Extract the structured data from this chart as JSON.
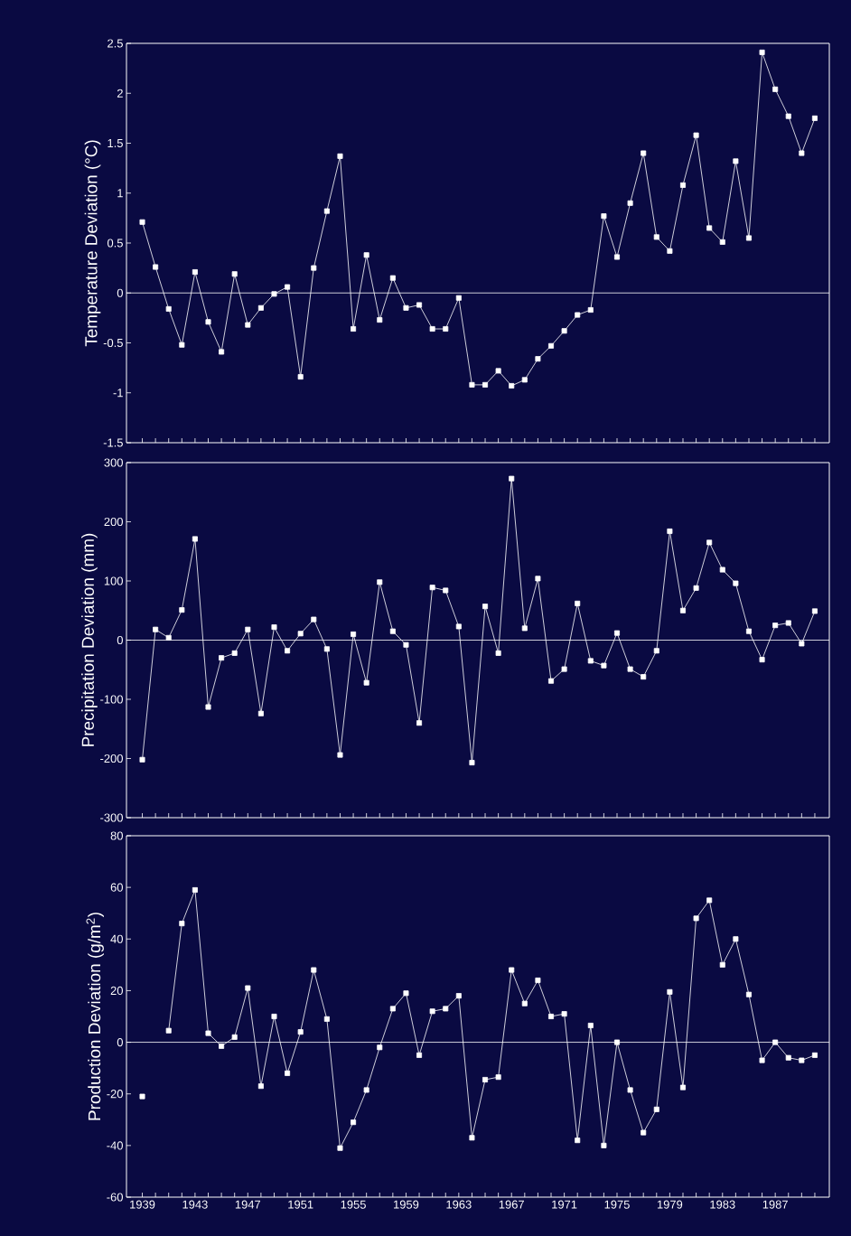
{
  "chart_data": [
    {
      "type": "line",
      "ylabel": "Temperature Deviation (°C)",
      "marker": "square",
      "line_style": "solid",
      "grid": false,
      "tick_labels": "y",
      "x": [
        1939,
        1940,
        1941,
        1942,
        1943,
        1944,
        1945,
        1946,
        1947,
        1948,
        1949,
        1950,
        1951,
        1952,
        1953,
        1954,
        1955,
        1956,
        1957,
        1958,
        1959,
        1960,
        1961,
        1962,
        1963,
        1964,
        1965,
        1966,
        1967,
        1968,
        1969,
        1970,
        1971,
        1972,
        1973,
        1974,
        1975,
        1976,
        1977,
        1978,
        1979,
        1980,
        1981,
        1982,
        1983,
        1984,
        1985,
        1986,
        1987,
        1988,
        1989,
        1990
      ],
      "xlim": [
        1937.8,
        1991.1
      ],
      "xticks": [
        1939,
        {
          "value": 1940,
          "label": null
        },
        {
          "value": 1941,
          "label": null
        },
        {
          "value": 1942,
          "label": null
        },
        1943,
        {
          "value": 1944,
          "label": null
        },
        {
          "value": 1945,
          "label": null
        },
        {
          "value": 1946,
          "label": null
        },
        1947,
        {
          "value": 1948,
          "label": null
        },
        {
          "value": 1949,
          "label": null
        },
        {
          "value": 1950,
          "label": null
        },
        1951,
        {
          "value": 1952,
          "label": null
        },
        {
          "value": 1953,
          "label": null
        },
        {
          "value": 1954,
          "label": null
        },
        1955,
        {
          "value": 1956,
          "label": null
        },
        {
          "value": 1957,
          "label": null
        },
        {
          "value": 1958,
          "label": null
        },
        1959,
        {
          "value": 1960,
          "label": null
        },
        {
          "value": 1961,
          "label": null
        },
        {
          "value": 1962,
          "label": null
        },
        1963,
        {
          "value": 1964,
          "label": null
        },
        {
          "value": 1965,
          "label": null
        },
        {
          "value": 1966,
          "label": null
        },
        1967,
        {
          "value": 1968,
          "label": null
        },
        {
          "value": 1969,
          "label": null
        },
        {
          "value": 1970,
          "label": null
        },
        1971,
        {
          "value": 1972,
          "label": null
        },
        {
          "value": 1973,
          "label": null
        },
        {
          "value": 1974,
          "label": null
        },
        1975,
        {
          "value": 1976,
          "label": null
        },
        {
          "value": 1977,
          "label": null
        },
        {
          "value": 1978,
          "label": null
        },
        1979,
        {
          "value": 1980,
          "label": null
        },
        {
          "value": 1981,
          "label": null
        },
        {
          "value": 1982,
          "label": null
        },
        1983,
        {
          "value": 1984,
          "label": null
        },
        {
          "value": 1985,
          "label": null
        },
        {
          "value": 1986,
          "label": null
        },
        1987,
        {
          "value": 1988,
          "label": null
        },
        {
          "value": 1989,
          "label": null
        },
        {
          "value": 1990,
          "label": null
        }
      ],
      "ylim": [
        -1.5,
        2.5
      ],
      "yticks": [
        -1.5,
        -1,
        -0.5,
        0,
        0.5,
        1,
        1.5,
        2,
        2.5
      ],
      "ref_lines": [
        {
          "axis": "y",
          "value": 0,
          "color": "#ffffff"
        }
      ],
      "series": [
        {
          "color": "#ffffff",
          "values": [
            0.71,
            0.26,
            -0.16,
            -0.52,
            0.21,
            -0.29,
            -0.59,
            0.19,
            -0.32,
            -0.15,
            -0.01,
            0.06,
            -0.84,
            0.25,
            0.82,
            1.37,
            -0.36,
            0.38,
            -0.27,
            0.15,
            -0.15,
            -0.12,
            -0.36,
            -0.36,
            -0.05,
            -0.92,
            -0.92,
            -0.78,
            -0.93,
            -0.87,
            -0.66,
            -0.53,
            -0.38,
            -0.22,
            -0.17,
            0.77,
            0.36,
            0.9,
            1.4,
            0.56,
            0.42,
            1.08,
            1.58,
            0.65,
            0.51,
            1.32,
            0.55,
            2.41,
            2.04,
            1.77,
            1.4,
            1.75
          ]
        }
      ]
    },
    {
      "type": "line",
      "ylabel": "Precipitation Deviation (mm)",
      "marker": "square",
      "line_style": "solid",
      "grid": false,
      "tick_labels": "y",
      "x": [
        1939,
        1940,
        1941,
        1942,
        1943,
        1944,
        1945,
        1946,
        1947,
        1948,
        1949,
        1950,
        1951,
        1952,
        1953,
        1954,
        1955,
        1956,
        1957,
        1958,
        1959,
        1960,
        1961,
        1962,
        1963,
        1964,
        1965,
        1966,
        1967,
        1968,
        1969,
        1970,
        1971,
        1972,
        1973,
        1974,
        1975,
        1976,
        1977,
        1978,
        1979,
        1980,
        1981,
        1982,
        1983,
        1984,
        1985,
        1986,
        1987,
        1988,
        1989,
        1990
      ],
      "xlim": [
        1937.8,
        1991.1
      ],
      "xticks": [
        1939,
        {
          "value": 1940,
          "label": null
        },
        {
          "value": 1941,
          "label": null
        },
        {
          "value": 1942,
          "label": null
        },
        1943,
        {
          "value": 1944,
          "label": null
        },
        {
          "value": 1945,
          "label": null
        },
        {
          "value": 1946,
          "label": null
        },
        1947,
        {
          "value": 1948,
          "label": null
        },
        {
          "value": 1949,
          "label": null
        },
        {
          "value": 1950,
          "label": null
        },
        1951,
        {
          "value": 1952,
          "label": null
        },
        {
          "value": 1953,
          "label": null
        },
        {
          "value": 1954,
          "label": null
        },
        1955,
        {
          "value": 1956,
          "label": null
        },
        {
          "value": 1957,
          "label": null
        },
        {
          "value": 1958,
          "label": null
        },
        1959,
        {
          "value": 1960,
          "label": null
        },
        {
          "value": 1961,
          "label": null
        },
        {
          "value": 1962,
          "label": null
        },
        1963,
        {
          "value": 1964,
          "label": null
        },
        {
          "value": 1965,
          "label": null
        },
        {
          "value": 1966,
          "label": null
        },
        1967,
        {
          "value": 1968,
          "label": null
        },
        {
          "value": 1969,
          "label": null
        },
        {
          "value": 1970,
          "label": null
        },
        1971,
        {
          "value": 1972,
          "label": null
        },
        {
          "value": 1973,
          "label": null
        },
        {
          "value": 1974,
          "label": null
        },
        1975,
        {
          "value": 1976,
          "label": null
        },
        {
          "value": 1977,
          "label": null
        },
        {
          "value": 1978,
          "label": null
        },
        1979,
        {
          "value": 1980,
          "label": null
        },
        {
          "value": 1981,
          "label": null
        },
        {
          "value": 1982,
          "label": null
        },
        1983,
        {
          "value": 1984,
          "label": null
        },
        {
          "value": 1985,
          "label": null
        },
        {
          "value": 1986,
          "label": null
        },
        1987,
        {
          "value": 1988,
          "label": null
        },
        {
          "value": 1989,
          "label": null
        },
        {
          "value": 1990,
          "label": null
        }
      ],
      "ylim": [
        -300,
        300
      ],
      "yticks": [
        -300,
        -200,
        -100,
        0,
        100,
        200,
        300
      ],
      "ref_lines": [
        {
          "axis": "y",
          "value": 0,
          "color": "#ffffff"
        }
      ],
      "series": [
        {
          "color": "#ffffff",
          "values": [
            -202,
            18,
            4,
            51,
            171,
            -113,
            -30,
            -22,
            18,
            -124,
            22,
            -18,
            11,
            35,
            -15,
            -194,
            10,
            -72,
            98,
            15,
            -8,
            -140,
            89,
            84,
            23,
            -207,
            57,
            -22,
            273,
            20,
            104,
            -69,
            -49,
            62,
            -35,
            -43,
            12,
            -49,
            -62,
            -18,
            184,
            50,
            88,
            165,
            119,
            96,
            15,
            -33,
            25,
            29,
            -6,
            49
          ]
        }
      ]
    },
    {
      "type": "line",
      "ylabel": "Production Deviation (g/m$^{2}$)",
      "marker": "square",
      "line_style": "solid",
      "grid": false,
      "x": [
        1939,
        1940,
        1941,
        1942,
        1943,
        1944,
        1945,
        1946,
        1947,
        1948,
        1949,
        1950,
        1951,
        1952,
        1953,
        1954,
        1955,
        1956,
        1957,
        1958,
        1959,
        1960,
        1961,
        1962,
        1963,
        1964,
        1965,
        1966,
        1967,
        1968,
        1969,
        1970,
        1971,
        1972,
        1973,
        1974,
        1975,
        1976,
        1977,
        1978,
        1979,
        1980,
        1981,
        1982,
        1983,
        1984,
        1985,
        1986,
        1987,
        1988,
        1989,
        1990
      ],
      "xlim": [
        1937.8,
        1991.1
      ],
      "xticks": [
        1939,
        {
          "value": 1940,
          "label": null
        },
        {
          "value": 1941,
          "label": null
        },
        {
          "value": 1942,
          "label": null
        },
        1943,
        {
          "value": 1944,
          "label": null
        },
        {
          "value": 1945,
          "label": null
        },
        {
          "value": 1946,
          "label": null
        },
        1947,
        {
          "value": 1948,
          "label": null
        },
        {
          "value": 1949,
          "label": null
        },
        {
          "value": 1950,
          "label": null
        },
        1951,
        {
          "value": 1952,
          "label": null
        },
        {
          "value": 1953,
          "label": null
        },
        {
          "value": 1954,
          "label": null
        },
        1955,
        {
          "value": 1956,
          "label": null
        },
        {
          "value": 1957,
          "label": null
        },
        {
          "value": 1958,
          "label": null
        },
        1959,
        {
          "value": 1960,
          "label": null
        },
        {
          "value": 1961,
          "label": null
        },
        {
          "value": 1962,
          "label": null
        },
        1963,
        {
          "value": 1964,
          "label": null
        },
        {
          "value": 1965,
          "label": null
        },
        {
          "value": 1966,
          "label": null
        },
        1967,
        {
          "value": 1968,
          "label": null
        },
        {
          "value": 1969,
          "label": null
        },
        {
          "value": 1970,
          "label": null
        },
        1971,
        {
          "value": 1972,
          "label": null
        },
        {
          "value": 1973,
          "label": null
        },
        {
          "value": 1974,
          "label": null
        },
        1975,
        {
          "value": 1976,
          "label": null
        },
        {
          "value": 1977,
          "label": null
        },
        {
          "value": 1978,
          "label": null
        },
        1979,
        {
          "value": 1980,
          "label": null
        },
        {
          "value": 1981,
          "label": null
        },
        {
          "value": 1982,
          "label": null
        },
        1983,
        {
          "value": 1984,
          "label": null
        },
        {
          "value": 1985,
          "label": null
        },
        {
          "value": 1986,
          "label": null
        },
        1987,
        {
          "value": 1988,
          "label": null
        },
        {
          "value": 1989,
          "label": null
        },
        {
          "value": 1990,
          "label": null
        }
      ],
      "ylim": [
        -60,
        80
      ],
      "yticks": [
        -60,
        -40,
        -20,
        0,
        20,
        40,
        60,
        80
      ],
      "ref_lines": [
        {
          "axis": "y",
          "value": 0,
          "color": "#ffffff"
        }
      ],
      "series": [
        {
          "color": "#ffffff",
          "values": [
            -21,
            null,
            4.5,
            46,
            59,
            3.5,
            -1.5,
            2,
            21,
            -17,
            10,
            -12,
            4,
            28,
            9,
            -41,
            -31,
            -18.5,
            -2,
            13,
            19,
            -5,
            12,
            13,
            18,
            -37,
            -14.5,
            -13.5,
            28,
            15,
            24,
            10,
            11,
            -38,
            6.5,
            -40,
            0,
            -18.5,
            -35,
            -26,
            19.5,
            -17.5,
            48,
            55,
            30,
            40,
            18.5,
            -7,
            0,
            -6,
            -7,
            -5
          ]
        }
      ]
    }
  ]
}
